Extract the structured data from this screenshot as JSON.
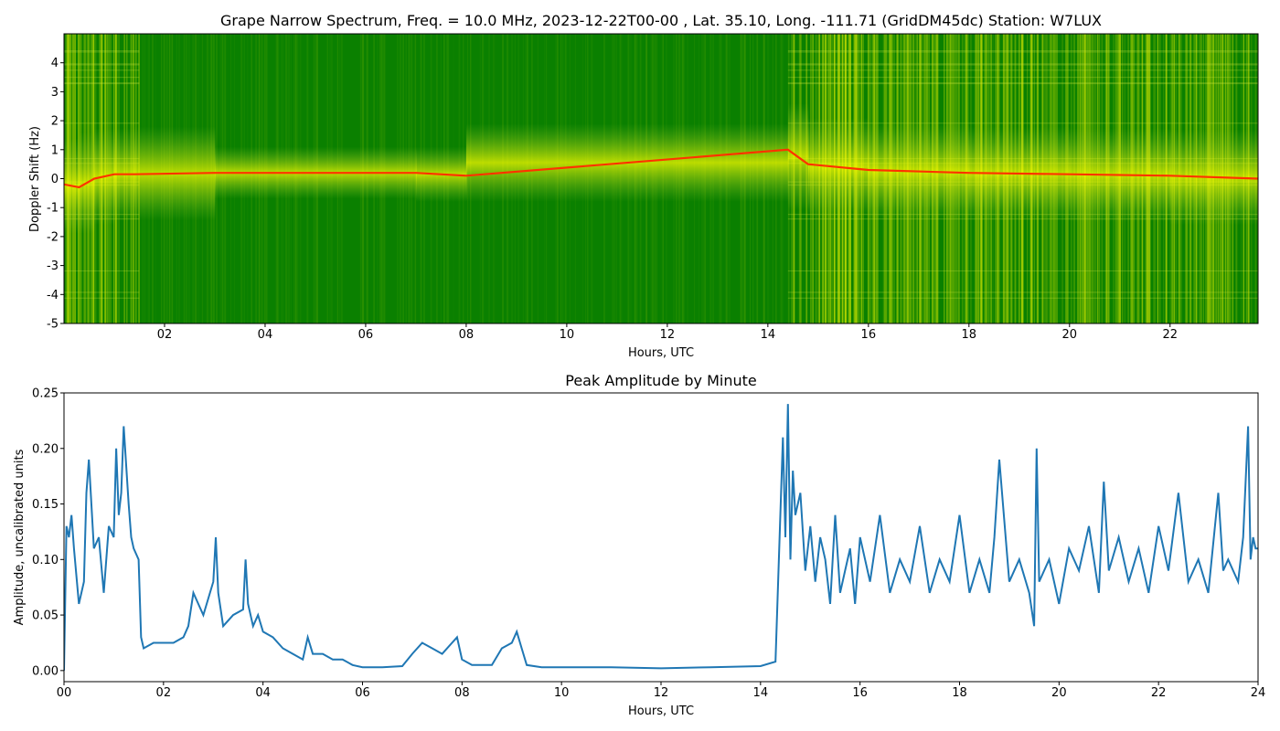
{
  "chart_data": [
    {
      "type": "heatmap",
      "title": "Grape Narrow Spectrum, Freq. = 10.0 MHz, 2023-12-22T00-00 , Lat.  35.10, Long. -111.71 (GridDM45dc) Station: W7LUX",
      "xlabel": "Hours, UTC",
      "ylabel": "Doppler Shift (Hz)",
      "xlim": [
        0,
        23.75
      ],
      "ylim": [
        -5,
        5
      ],
      "x_tick_labels": [
        "02",
        "04",
        "06",
        "08",
        "10",
        "12",
        "14",
        "16",
        "18",
        "20",
        "22"
      ],
      "x_tick_values": [
        2,
        4,
        6,
        8,
        10,
        12,
        14,
        16,
        18,
        20,
        22
      ],
      "y_tick_labels": [
        "4",
        "3",
        "2",
        "1",
        "0",
        "-1",
        "-2",
        "-3",
        "-4",
        "-5"
      ],
      "y_tick_values": [
        4,
        3,
        2,
        1,
        0,
        -1,
        -2,
        -3,
        -4,
        -5
      ],
      "colormap": [
        "#008000",
        "#ffff00",
        "#ff0000"
      ],
      "carrier_trace": [
        {
          "x": 0.0,
          "y": -0.2
        },
        {
          "x": 0.3,
          "y": -0.3
        },
        {
          "x": 0.6,
          "y": 0.0
        },
        {
          "x": 1.0,
          "y": 0.15
        },
        {
          "x": 1.4,
          "y": 0.15
        },
        {
          "x": 3.0,
          "y": 0.2
        },
        {
          "x": 7.0,
          "y": 0.2
        },
        {
          "x": 8.0,
          "y": 0.1
        },
        {
          "x": 14.4,
          "y": 1.0
        },
        {
          "x": 14.8,
          "y": 0.5
        },
        {
          "x": 16.0,
          "y": 0.3
        },
        {
          "x": 18.0,
          "y": 0.2
        },
        {
          "x": 20.0,
          "y": 0.15
        },
        {
          "x": 22.0,
          "y": 0.1
        },
        {
          "x": 23.75,
          "y": 0.0
        }
      ]
    },
    {
      "type": "line",
      "title": "Peak Amplitude by Minute",
      "xlabel": "Hours, UTC",
      "ylabel": "Amplitude, uncalibrated units",
      "xlim": [
        0,
        24
      ],
      "ylim": [
        -0.01,
        0.25
      ],
      "x_tick_labels": [
        "00",
        "02",
        "04",
        "06",
        "08",
        "10",
        "12",
        "14",
        "16",
        "18",
        "20",
        "22",
        "24"
      ],
      "x_tick_values": [
        0,
        2,
        4,
        6,
        8,
        10,
        12,
        14,
        16,
        18,
        20,
        22,
        24
      ],
      "y_tick_labels": [
        "0.00",
        "0.05",
        "0.10",
        "0.15",
        "0.20",
        "0.25"
      ],
      "y_tick_values": [
        0,
        0.05,
        0.1,
        0.15,
        0.2,
        0.25
      ],
      "color": "#1f77b4",
      "series": [
        {
          "x": [
            0.0,
            0.05,
            0.1,
            0.15,
            0.2,
            0.3,
            0.4,
            0.45,
            0.5,
            0.6,
            0.7,
            0.8,
            0.9,
            1.0,
            1.05,
            1.1,
            1.15,
            1.2,
            1.3,
            1.35,
            1.4,
            1.5,
            1.55,
            1.6,
            1.8,
            2.0,
            2.2,
            2.4,
            2.5,
            2.6,
            2.7,
            2.8,
            3.0,
            3.05,
            3.1,
            3.2,
            3.4,
            3.6,
            3.65,
            3.7,
            3.8,
            3.9,
            4.0,
            4.2,
            4.4,
            4.6,
            4.8,
            4.9,
            5.0,
            5.2,
            5.4,
            5.6,
            5.8,
            6.0,
            6.4,
            6.8,
            7.0,
            7.2,
            7.4,
            7.6,
            7.8,
            7.9,
            8.0,
            8.2,
            8.4,
            8.6,
            8.8,
            9.0,
            9.1,
            9.2,
            9.3,
            9.6,
            10.0,
            11.0,
            12.0,
            13.0,
            14.0,
            14.3,
            14.45,
            14.5,
            14.55,
            14.6,
            14.65,
            14.7,
            14.8,
            14.9,
            15.0,
            15.1,
            15.2,
            15.3,
            15.4,
            15.5,
            15.6,
            15.7,
            15.8,
            15.9,
            16.0,
            16.2,
            16.4,
            16.6,
            16.8,
            17.0,
            17.2,
            17.4,
            17.6,
            17.8,
            18.0,
            18.2,
            18.4,
            18.6,
            18.7,
            18.8,
            19.0,
            19.2,
            19.4,
            19.5,
            19.55,
            19.6,
            19.8,
            20.0,
            20.2,
            20.4,
            20.6,
            20.8,
            20.9,
            21.0,
            21.2,
            21.4,
            21.6,
            21.8,
            22.0,
            22.2,
            22.4,
            22.6,
            22.8,
            23.0,
            23.2,
            23.3,
            23.4,
            23.6,
            23.7,
            23.8,
            23.85,
            23.9,
            23.95,
            24.0
          ],
          "y": [
            0.0,
            0.13,
            0.12,
            0.14,
            0.11,
            0.06,
            0.08,
            0.16,
            0.19,
            0.11,
            0.12,
            0.07,
            0.13,
            0.12,
            0.2,
            0.14,
            0.16,
            0.22,
            0.15,
            0.12,
            0.11,
            0.1,
            0.03,
            0.02,
            0.025,
            0.025,
            0.025,
            0.03,
            0.04,
            0.07,
            0.06,
            0.05,
            0.08,
            0.12,
            0.07,
            0.04,
            0.05,
            0.055,
            0.1,
            0.06,
            0.04,
            0.05,
            0.035,
            0.03,
            0.02,
            0.015,
            0.01,
            0.03,
            0.015,
            0.015,
            0.01,
            0.01,
            0.005,
            0.003,
            0.003,
            0.004,
            0.015,
            0.025,
            0.02,
            0.015,
            0.025,
            0.03,
            0.01,
            0.005,
            0.005,
            0.005,
            0.02,
            0.025,
            0.035,
            0.02,
            0.005,
            0.003,
            0.003,
            0.003,
            0.002,
            0.003,
            0.004,
            0.008,
            0.21,
            0.12,
            0.24,
            0.1,
            0.18,
            0.14,
            0.16,
            0.09,
            0.13,
            0.08,
            0.12,
            0.1,
            0.06,
            0.14,
            0.07,
            0.09,
            0.11,
            0.06,
            0.12,
            0.08,
            0.14,
            0.07,
            0.1,
            0.08,
            0.13,
            0.07,
            0.1,
            0.08,
            0.14,
            0.07,
            0.1,
            0.07,
            0.12,
            0.19,
            0.08,
            0.1,
            0.07,
            0.04,
            0.2,
            0.08,
            0.1,
            0.06,
            0.11,
            0.09,
            0.13,
            0.07,
            0.17,
            0.09,
            0.12,
            0.08,
            0.11,
            0.07,
            0.13,
            0.09,
            0.16,
            0.08,
            0.1,
            0.07,
            0.16,
            0.09,
            0.1,
            0.08,
            0.12,
            0.22,
            0.1,
            0.12,
            0.11,
            0.11
          ]
        }
      ]
    }
  ]
}
